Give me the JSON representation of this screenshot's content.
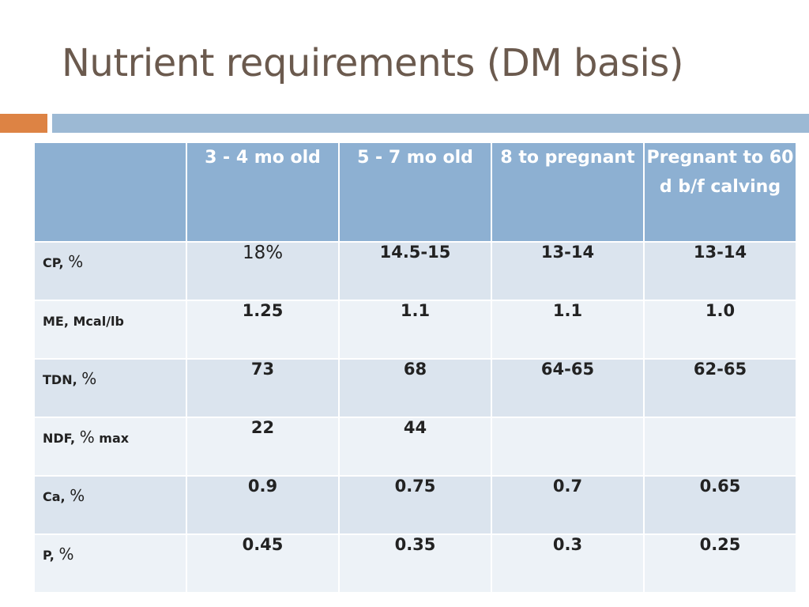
{
  "title": "Nutrient requirements (DM basis)",
  "colors": {
    "title": "#6b5a4e",
    "accent_orange": "#dd8344",
    "accent_blue": "#9cb9d4",
    "header_bg": "#8db0d2",
    "row_dark": "#dbe4ee",
    "row_light": "#edf2f7"
  },
  "table": {
    "corner": "",
    "headers": [
      "3 - 4 mo old",
      "5 - 7 mo old",
      "8 to pregnant",
      "Pregnant to 60 d b/f calving"
    ],
    "rows": [
      {
        "label": "CP, ",
        "unit": "%",
        "values": [
          "18%",
          "14.5-15",
          "13-14",
          "13-14"
        ]
      },
      {
        "label": "ME, Mcal/lb",
        "unit": "",
        "values": [
          "1.25",
          "1.1",
          "1.1",
          "1.0"
        ]
      },
      {
        "label": "TDN, ",
        "unit": "%",
        "values": [
          "73",
          "68",
          "64-65",
          "62-65"
        ]
      },
      {
        "label": "NDF, ",
        "unit": "%",
        "suffix": " max",
        "values": [
          "22",
          "44",
          "",
          ""
        ]
      },
      {
        "label": "Ca, ",
        "unit": "%",
        "values": [
          "0.9",
          "0.75",
          "0.7",
          "0.65"
        ]
      },
      {
        "label": "P, ",
        "unit": "%",
        "values": [
          "0.45",
          "0.35",
          "0.3",
          "0.25"
        ]
      }
    ]
  }
}
